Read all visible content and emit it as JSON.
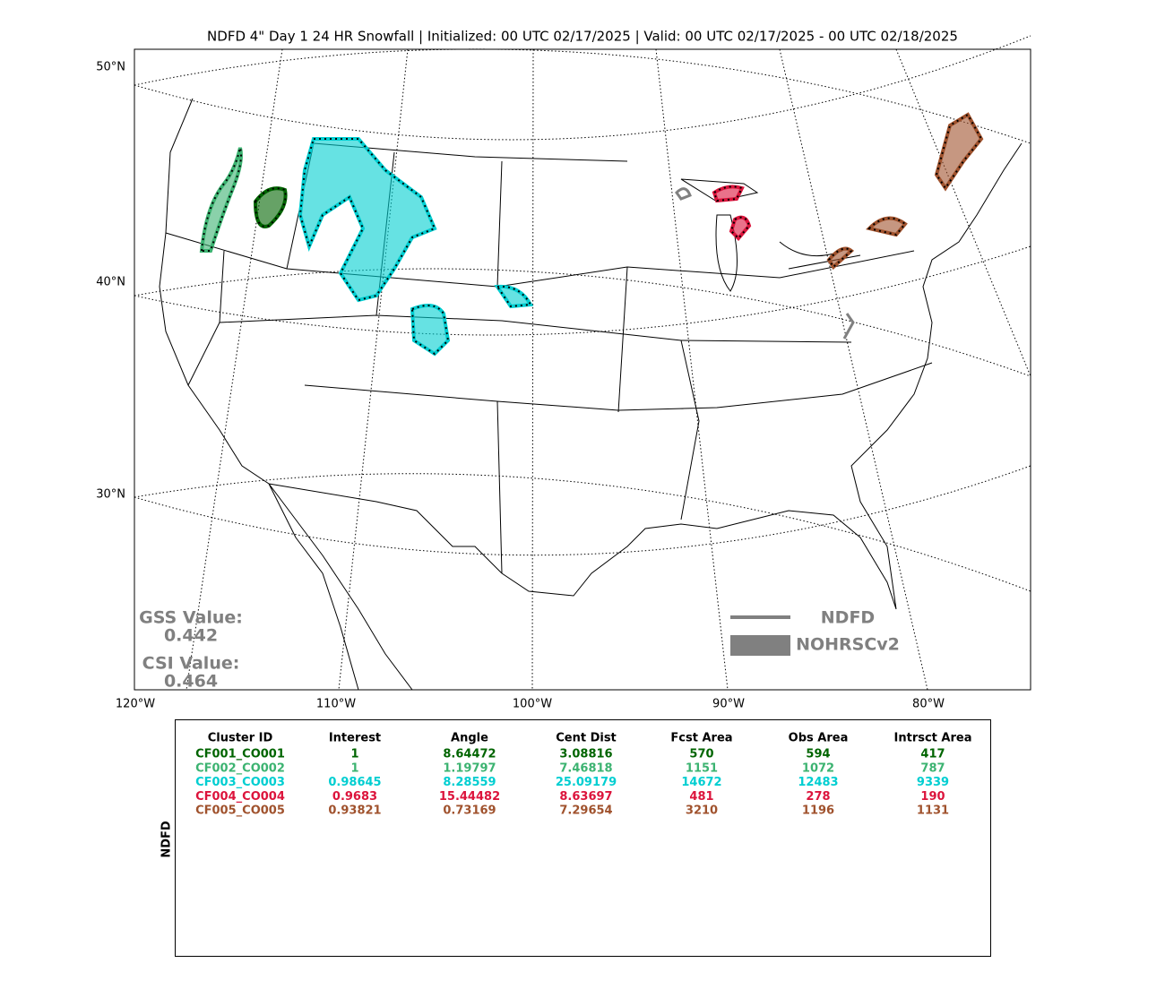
{
  "title": "NDFD 4\" Day 1 24 HR Snowfall | Initialized: 00 UTC 02/17/2025 | Valid: 00 UTC 02/17/2025 - 00 UTC 02/18/2025",
  "map": {
    "lat_labels": [
      "50°N",
      "40°N",
      "30°N"
    ],
    "lon_labels": [
      "120°W",
      "110°W",
      "100°W",
      "90°W",
      "80°W"
    ]
  },
  "scores": {
    "gss_label": "GSS Value:",
    "gss_value": "0.442",
    "csi_label": "CSI Value:",
    "csi_value": "0.464"
  },
  "legend": {
    "items": [
      "NDFD",
      "NOHRSCv2"
    ],
    "line_color": "#808080"
  },
  "table": {
    "side_label": "NDFD",
    "columns": [
      "Cluster ID",
      "Interest",
      "Angle",
      "Cent Dist",
      "Fcst Area",
      "Obs Area",
      "Intrsct Area"
    ],
    "rows": [
      {
        "color": "#006400",
        "cells": [
          "CF001_CO001",
          "1",
          "8.64472",
          "3.08816",
          "570",
          "594",
          "417"
        ]
      },
      {
        "color": "#3cb371",
        "cells": [
          "CF002_CO002",
          "1",
          "1.19797",
          "7.46818",
          "1151",
          "1072",
          "787"
        ]
      },
      {
        "color": "#00ced1",
        "cells": [
          "CF003_CO003",
          "0.98645",
          "8.28559",
          "25.09179",
          "14672",
          "12483",
          "9339"
        ]
      },
      {
        "color": "#dc143c",
        "cells": [
          "CF004_CO004",
          "0.9683",
          "15.44482",
          "8.63697",
          "481",
          "278",
          "190"
        ]
      },
      {
        "color": "#a0522d",
        "cells": [
          "CF005_CO005",
          "0.93821",
          "0.73169",
          "7.29654",
          "3210",
          "1196",
          "1131"
        ]
      }
    ]
  }
}
